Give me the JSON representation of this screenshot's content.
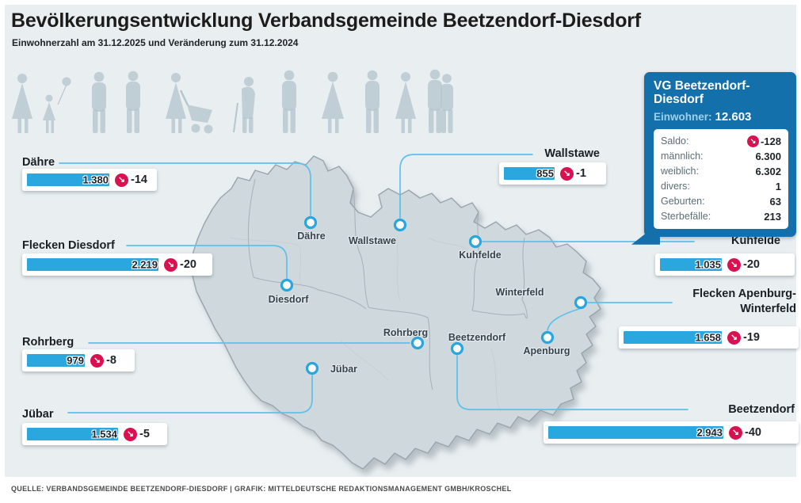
{
  "title": "Bevölkerungsentwicklung Verbandsgemeinde Beetzendorf-Diesdorf",
  "subtitle": "Einwohnerzahl am 31.12.2025 und Veränderung zum 31.12.2024",
  "glyphs": {
    "decrease_arrow": "↘"
  },
  "summary_box": {
    "title": "VG Beetzendorf-Diesdorf",
    "einwohner_label": "Einwohner:",
    "einwohner_value": "12.603",
    "rows": [
      {
        "label": "Saldo:",
        "value": "-128"
      },
      {
        "label": "männlich:",
        "value": "6.300"
      },
      {
        "label": "weiblich:",
        "value": "6.302"
      },
      {
        "label": "divers:",
        "value": "1"
      },
      {
        "label": "Geburten:",
        "value": "63"
      },
      {
        "label": "Sterbefälle:",
        "value": "213"
      }
    ]
  },
  "municipalities": [
    {
      "name": "Dähre",
      "pop": 1380,
      "pop_label": "1.380",
      "change": "-14"
    },
    {
      "name": "Flecken Diesdorf",
      "pop": 2219,
      "pop_label": "2.219",
      "change": "-20"
    },
    {
      "name": "Rohrberg",
      "pop": 979,
      "pop_label": "979",
      "change": "-8"
    },
    {
      "name": "Jübar",
      "pop": 1534,
      "pop_label": "1.534",
      "change": "-5"
    },
    {
      "name": "Wallstawe",
      "pop": 855,
      "pop_label": "855",
      "change": "-1"
    },
    {
      "name": "Kuhfelde",
      "pop": 1035,
      "pop_label": "1.035",
      "change": "-20"
    },
    {
      "name": "Flecken Apenburg-Winterfeld",
      "pop": 1658,
      "pop_label": "1.658",
      "change": "-19"
    },
    {
      "name": "Beetzendorf",
      "pop": 2943,
      "pop_label": "2.943",
      "change": "-40"
    }
  ],
  "map_labels": [
    "Dähre",
    "Wallstawe",
    "Kuhfelde",
    "Diesdorf",
    "Winterfeld",
    "Rohrberg",
    "Beetzendorf",
    "Apenburg",
    "Jübar"
  ],
  "source": "QUELLE: VERBANDSGEMEINDE BEETZENDORF-DIESDORF | GRAFIK: MITTELDEUTSCHE REDAKTIONSMANAGEMENT GMBH/KROSCHEL",
  "colors": {
    "background": "#e9eef1",
    "accent_blue": "#2ba7e0",
    "info_blue": "#1370aa",
    "negative_red": "#da1150",
    "map_fill": "#ced8dd",
    "connector_blue": "#5ec1e8"
  },
  "chart_data": {
    "type": "bar",
    "title": "Bevölkerungsentwicklung Verbandsgemeinde Beetzendorf-Diesdorf",
    "subtitle": "Einwohnerzahl am 31.12.2025 und Veränderung zum 31.12.2024",
    "categories": [
      "Dähre",
      "Flecken Diesdorf",
      "Rohrberg",
      "Jübar",
      "Wallstawe",
      "Kuhfelde",
      "Flecken Apenburg-Winterfeld",
      "Beetzendorf"
    ],
    "series": [
      {
        "name": "Einwohner 31.12.2025",
        "values": [
          1380,
          2219,
          979,
          1534,
          855,
          1035,
          1658,
          2943
        ]
      },
      {
        "name": "Veränderung zum 31.12.2024",
        "values": [
          -14,
          -20,
          -8,
          -5,
          -1,
          -20,
          -19,
          -40
        ]
      }
    ],
    "totals": {
      "einwohner": 12603,
      "saldo": -128,
      "maennlich": 6300,
      "weiblich": 6302,
      "divers": 1,
      "geburten": 63,
      "sterbefaelle": 213
    },
    "xlabel": "",
    "ylabel": "Einwohner"
  }
}
